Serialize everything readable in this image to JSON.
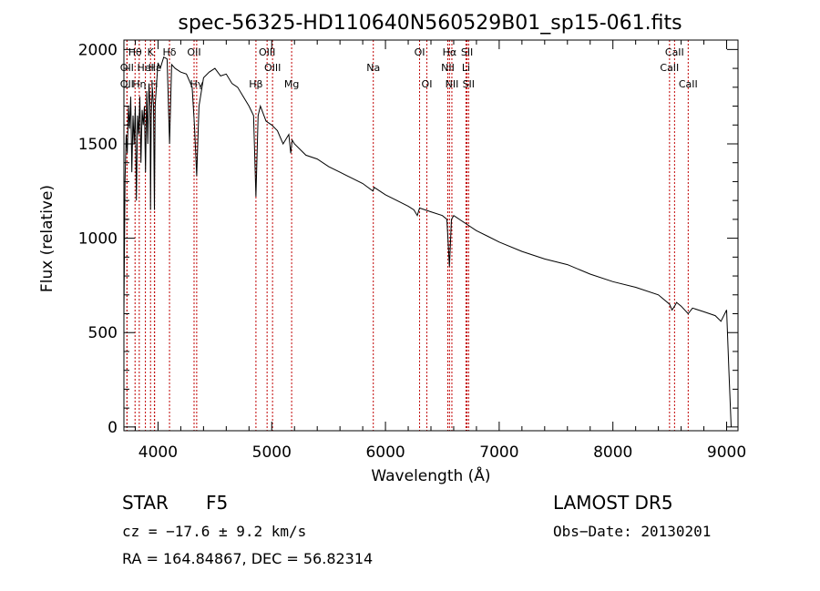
{
  "title": "spec-56325-HD110640N560529B01_sp15-061.fits",
  "info": {
    "class_label": "STAR",
    "subclass": "F5",
    "survey": "LAMOST DR5",
    "cz": "cz = −17.6 ± 9.2 km/s",
    "obs_date": "Obs−Date: 20130201",
    "radec": "RA = 164.84867, DEC =  56.82314"
  },
  "chart_data": {
    "type": "line",
    "title": "spec-56325-HD110640N560529B01_sp15-061.fits",
    "xlabel": "Wavelength (Å)",
    "ylabel": "Flux (relative)",
    "xlim": [
      3700,
      9100
    ],
    "ylim": [
      -20,
      2050
    ],
    "x_ticks": [
      4000,
      5000,
      6000,
      7000,
      8000,
      9000
    ],
    "y_ticks": [
      0,
      500,
      1000,
      1500,
      2000
    ],
    "grid": false,
    "line_color": "#000000",
    "marker_color": "#c00000",
    "series": [
      {
        "x": [
          3700,
          3710,
          3720,
          3730,
          3740,
          3750,
          3760,
          3770,
          3780,
          3790,
          3800,
          3810,
          3820,
          3830,
          3840,
          3850,
          3860,
          3870,
          3880,
          3890,
          3900,
          3910,
          3920,
          3930,
          3934,
          3940,
          3950,
          3960,
          3968,
          3975,
          3985,
          4000,
          4020,
          4050,
          4080,
          4101,
          4120,
          4150,
          4200,
          4250,
          4300,
          4320,
          4340,
          4360,
          4400,
          4450,
          4500,
          4550,
          4600,
          4650,
          4700,
          4750,
          4800,
          4840,
          4861,
          4880,
          4900,
          4950,
          5000,
          5050,
          5100,
          5150,
          5167,
          5180,
          5200,
          5300,
          5400,
          5500,
          5600,
          5700,
          5800,
          5890,
          5900,
          6000,
          6100,
          6200,
          6250,
          6280,
          6300,
          6400,
          6500,
          6540,
          6563,
          6580,
          6600,
          6700,
          6800,
          6900,
          7000,
          7200,
          7400,
          7600,
          7800,
          8000,
          8200,
          8400,
          8498,
          8520,
          8542,
          8560,
          8600,
          8662,
          8700,
          8800,
          8900,
          8950,
          9000,
          9020,
          9040
        ],
        "y": [
          600,
          1300,
          1550,
          1450,
          1700,
          1580,
          1750,
          1350,
          1650,
          1500,
          1700,
          1200,
          1650,
          1550,
          1750,
          1400,
          1680,
          1600,
          1700,
          1350,
          1780,
          1500,
          1820,
          1700,
          1150,
          1650,
          1800,
          1700,
          1150,
          1700,
          1800,
          1930,
          1900,
          1960,
          1950,
          1500,
          1920,
          1900,
          1880,
          1870,
          1800,
          1600,
          1330,
          1700,
          1850,
          1880,
          1900,
          1860,
          1870,
          1820,
          1800,
          1750,
          1700,
          1650,
          1220,
          1650,
          1700,
          1620,
          1600,
          1570,
          1500,
          1550,
          1450,
          1520,
          1500,
          1440,
          1420,
          1380,
          1350,
          1320,
          1290,
          1250,
          1270,
          1230,
          1200,
          1170,
          1150,
          1120,
          1160,
          1140,
          1120,
          1100,
          850,
          1100,
          1120,
          1080,
          1040,
          1010,
          980,
          930,
          890,
          860,
          810,
          770,
          740,
          700,
          650,
          620,
          640,
          660,
          640,
          600,
          630,
          610,
          590,
          560,
          620,
          300,
          0
        ]
      }
    ],
    "line_markers": [
      {
        "name": "Hθ",
        "x": 3798,
        "row": 0
      },
      {
        "name": "OII",
        "x": 3727,
        "row": 1
      },
      {
        "name": "OII",
        "x": 3727,
        "row": 2
      },
      {
        "name": "K",
        "x": 3934,
        "row": 0
      },
      {
        "name": "HeI",
        "x": 3889,
        "row": 1
      },
      {
        "name": "Hη",
        "x": 3835,
        "row": 2
      },
      {
        "name": "H",
        "x": 3968,
        "row": 2
      },
      {
        "name": "Hε",
        "x": 3970,
        "row": 1
      },
      {
        "name": "Hδ",
        "x": 4101,
        "row": 0
      },
      {
        "name": "OII",
        "x": 4317,
        "row": 0
      },
      {
        "name": "Hγ",
        "x": 4340,
        "row": 2
      },
      {
        "name": "OIII",
        "x": 4959,
        "row": 0
      },
      {
        "name": "OIII",
        "x": 5007,
        "row": 1
      },
      {
        "name": "Hβ",
        "x": 4861,
        "row": 2
      },
      {
        "name": "Mg",
        "x": 5175,
        "row": 2
      },
      {
        "name": "Na",
        "x": 5893,
        "row": 1
      },
      {
        "name": "OI",
        "x": 6300,
        "row": 0
      },
      {
        "name": "OI",
        "x": 6364,
        "row": 2
      },
      {
        "name": "Hα",
        "x": 6563,
        "row": 0
      },
      {
        "name": "NII",
        "x": 6548,
        "row": 1
      },
      {
        "name": "NII",
        "x": 6584,
        "row": 2
      },
      {
        "name": "SII",
        "x": 6717,
        "row": 0
      },
      {
        "name": "Li",
        "x": 6708,
        "row": 1
      },
      {
        "name": "SII",
        "x": 6731,
        "row": 2
      },
      {
        "name": "CaII",
        "x": 8542,
        "row": 0
      },
      {
        "name": "CaII",
        "x": 8498,
        "row": 1
      },
      {
        "name": "CaII",
        "x": 8662,
        "row": 2
      }
    ]
  }
}
